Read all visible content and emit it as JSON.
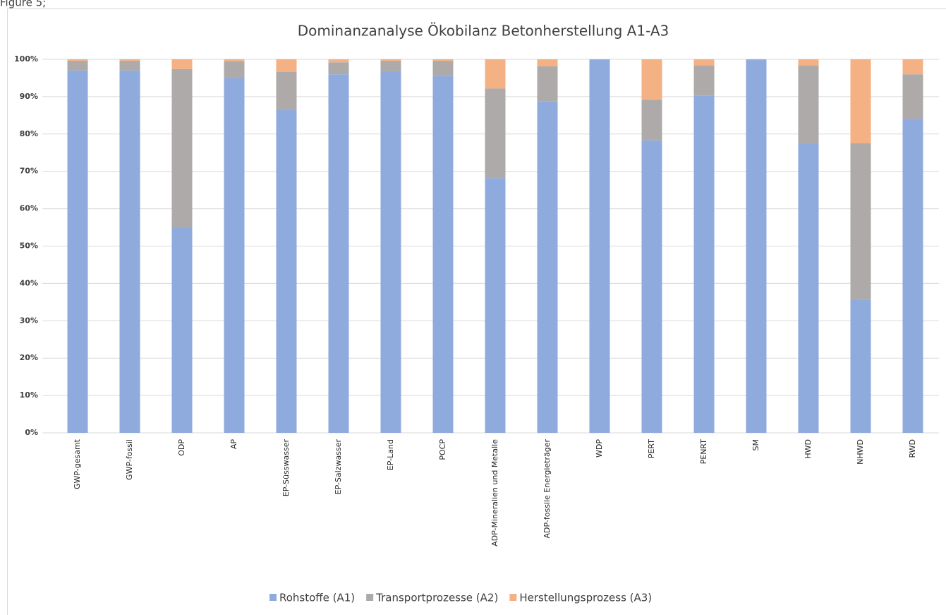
{
  "caption": "Figure 5;",
  "chart_data": {
    "type": "stacked_bar",
    "title": "Dominanzanalyse Ökobilanz Betonherstellung A1-A3",
    "categories": [
      "GWP-gesamt",
      "GWP-fossil",
      "ODP",
      "AP",
      "EP-Süsswasser",
      "EP-Salzwasser",
      "EP-Land",
      "POCP",
      "ADP-Mineralien und Metalle",
      "ADP-fossile Energieträger",
      "WDP",
      "PERT",
      "PENRT",
      "SM",
      "HWD",
      "NHWD",
      "RWD"
    ],
    "series": [
      {
        "name": "Rohstoffe (A1)",
        "color": "#8faadc",
        "values": [
          97,
          97,
          55,
          95,
          86.6,
          96,
          96.8,
          95.5,
          68.2,
          88.7,
          99.9,
          78.3,
          90.2,
          99.8,
          77.5,
          35.7,
          84.1
        ]
      },
      {
        "name": "Transportprozesse (A2)",
        "color": "#aeaaaa",
        "values": [
          2.6,
          2.6,
          42.4,
          4.5,
          10,
          3.2,
          2.8,
          4.1,
          24,
          9.4,
          0.1,
          10.9,
          8.1,
          0.2,
          20.8,
          41.8,
          11.9
        ]
      },
      {
        "name": "Herstellungsprozess (A3)",
        "color": "#f4b183",
        "values": [
          0.4,
          0.4,
          2.6,
          0.5,
          3.4,
          0.8,
          0.4,
          0.4,
          7.8,
          1.9,
          0,
          10.8,
          1.7,
          0,
          1.7,
          22.5,
          4
        ]
      }
    ],
    "ylim": [
      0,
      100
    ],
    "yticks": [
      {
        "value": 0,
        "label": "0%"
      },
      {
        "value": 10,
        "label": "10%"
      },
      {
        "value": 20,
        "label": "20%"
      },
      {
        "value": 30,
        "label": "30%"
      },
      {
        "value": 40,
        "label": "40%"
      },
      {
        "value": 50,
        "label": "50%"
      },
      {
        "value": 60,
        "label": "60%"
      },
      {
        "value": 70,
        "label": "70%"
      },
      {
        "value": 80,
        "label": "80%"
      },
      {
        "value": 90,
        "label": "90%"
      },
      {
        "value": 100,
        "label": "100%"
      }
    ],
    "grid": true,
    "legend": "bottom"
  }
}
